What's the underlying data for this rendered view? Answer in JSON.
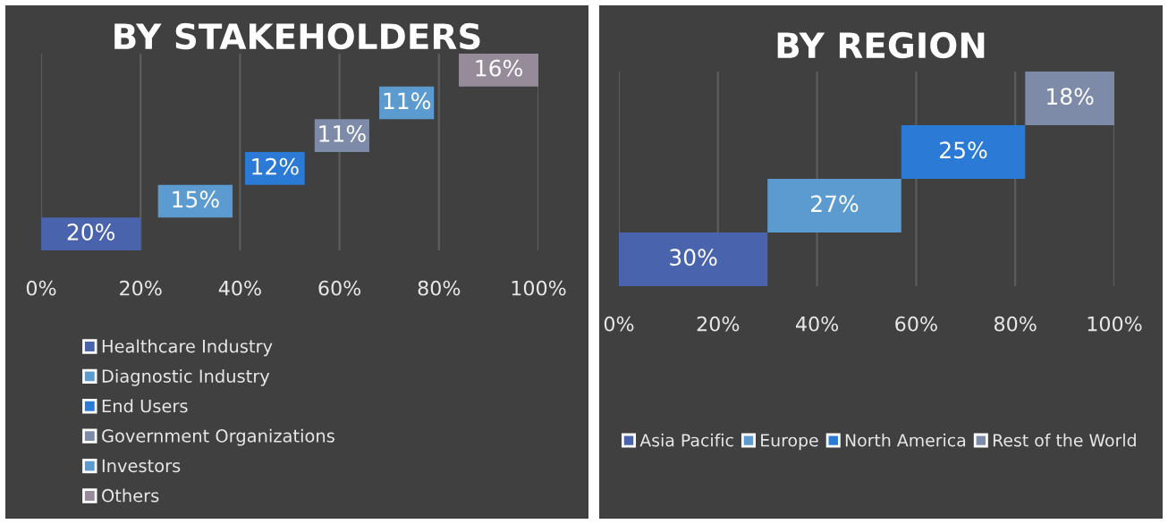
{
  "chart_data": [
    {
      "type": "bar",
      "title": "BY STAKEHOLDERS",
      "orientation": "horizontal",
      "categories": [
        null,
        null,
        null,
        null,
        null,
        null
      ],
      "series": [
        {
          "name": "Healthcare Industry",
          "color": "#4a63ad",
          "values": [
            null,
            null,
            null,
            null,
            null,
            20
          ],
          "base": [
            null,
            null,
            null,
            null,
            null,
            0
          ],
          "value_labels": [
            null,
            null,
            null,
            null,
            null,
            "20%"
          ]
        },
        {
          "name": "Diagnostic Industry",
          "color": "#5b9bd0",
          "values": [
            null,
            null,
            null,
            null,
            15,
            null
          ],
          "base": [
            null,
            null,
            null,
            null,
            23.5,
            null
          ],
          "value_labels": [
            null,
            null,
            null,
            null,
            "15%",
            null
          ]
        },
        {
          "name": "End Users",
          "color": "#2a7ad6",
          "values": [
            null,
            null,
            null,
            12,
            null,
            null
          ],
          "base": [
            null,
            null,
            null,
            41,
            null,
            null
          ],
          "value_labels": [
            null,
            null,
            null,
            "12%",
            null,
            null
          ]
        },
        {
          "name": "Government Organizations",
          "color": "#7d8aa8",
          "values": [
            null,
            null,
            11,
            null,
            null,
            null
          ],
          "base": [
            null,
            null,
            55,
            null,
            null,
            null
          ],
          "value_labels": [
            null,
            null,
            "11%",
            null,
            null,
            null
          ]
        },
        {
          "name": "Investors",
          "color": "#5b9bd0",
          "values": [
            null,
            11,
            null,
            null,
            null,
            null
          ],
          "base": [
            null,
            68,
            null,
            null,
            null,
            null
          ],
          "value_labels": [
            null,
            "11%",
            null,
            null,
            null,
            null
          ]
        },
        {
          "name": "Others",
          "color": "#968b98",
          "values": [
            16,
            null,
            null,
            null,
            null,
            null
          ],
          "base": [
            84,
            null,
            null,
            null,
            null,
            null
          ],
          "value_labels": [
            "16%",
            null,
            null,
            null,
            null,
            null
          ]
        }
      ],
      "xlim": [
        0,
        100
      ],
      "xticks": [
        {
          "value": 0,
          "label": "0%"
        },
        {
          "value": 20,
          "label": "20%"
        },
        {
          "value": 40,
          "label": "40%"
        },
        {
          "value": 60,
          "label": "60%"
        },
        {
          "value": 80,
          "label": "80%"
        },
        {
          "value": 100,
          "label": "100%"
        }
      ],
      "grid": "x",
      "legend": "bottom left",
      "tick_labels": "x"
    },
    {
      "type": "bar",
      "title": "BY REGION",
      "orientation": "horizontal",
      "categories": [
        null,
        null,
        null,
        null
      ],
      "series": [
        {
          "name": "Asia Pacific",
          "color": "#4a63ad",
          "values": [
            null,
            null,
            null,
            30
          ],
          "base": [
            null,
            null,
            null,
            0
          ],
          "value_labels": [
            null,
            null,
            null,
            "30%"
          ]
        },
        {
          "name": "Europe",
          "color": "#5b9bd0",
          "values": [
            null,
            null,
            27,
            null
          ],
          "base": [
            null,
            null,
            30,
            null
          ],
          "value_labels": [
            null,
            null,
            "27%",
            null
          ]
        },
        {
          "name": "North America",
          "color": "#2a7ad6",
          "values": [
            null,
            25,
            null,
            null
          ],
          "base": [
            null,
            57,
            null,
            null
          ],
          "value_labels": [
            null,
            "25%",
            null,
            null
          ]
        },
        {
          "name": "Rest of the World",
          "color": "#7d8aa8",
          "values": [
            18,
            null,
            null,
            null
          ],
          "base": [
            82,
            null,
            null,
            null
          ],
          "value_labels": [
            "18%",
            null,
            null,
            null
          ]
        }
      ],
      "xlim": [
        0,
        100
      ],
      "xticks": [
        {
          "value": 0,
          "label": "0%"
        },
        {
          "value": 20,
          "label": "20%"
        },
        {
          "value": 40,
          "label": "40%"
        },
        {
          "value": 60,
          "label": "60%"
        },
        {
          "value": 80,
          "label": "80%"
        },
        {
          "value": 100,
          "label": "100%"
        }
      ],
      "grid": "x",
      "legend": "bottom",
      "tick_labels": "x"
    }
  ]
}
